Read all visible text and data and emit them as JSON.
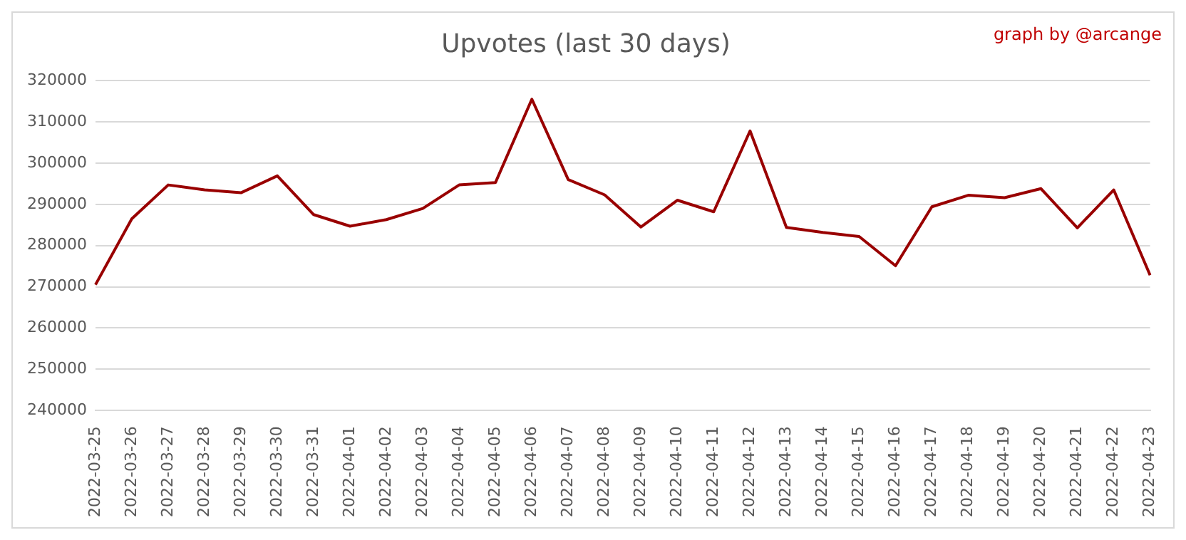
{
  "chart_data": {
    "type": "line",
    "title": "Upvotes (last 30 days)",
    "annotations": [
      "graph by @arcange"
    ],
    "categories": [
      "2022-03-25",
      "2022-03-26",
      "2022-03-27",
      "2022-03-28",
      "2022-03-29",
      "2022-03-30",
      "2022-03-31",
      "2022-04-01",
      "2022-04-02",
      "2022-04-03",
      "2022-04-04",
      "2022-04-05",
      "2022-04-06",
      "2022-04-07",
      "2022-04-08",
      "2022-04-09",
      "2022-04-10",
      "2022-04-11",
      "2022-04-12",
      "2022-04-13",
      "2022-04-14",
      "2022-04-15",
      "2022-04-16",
      "2022-04-17",
      "2022-04-18",
      "2022-04-19",
      "2022-04-20",
      "2022-04-21",
      "2022-04-22",
      "2022-04-23"
    ],
    "series": [
      {
        "color": "#990000",
        "values": [
          270500,
          286500,
          294700,
          293500,
          292800,
          296900,
          287500,
          284700,
          286300,
          289000,
          294700,
          295300,
          315500,
          296000,
          292300,
          284500,
          291000,
          288200,
          307800,
          284400,
          283200,
          282200,
          275100,
          289400,
          292200,
          291600,
          293800,
          284300,
          293500,
          272800
        ]
      }
    ],
    "ylim": [
      240000,
      320000
    ],
    "yticks": [
      240000,
      250000,
      260000,
      270000,
      280000,
      290000,
      300000,
      310000,
      320000
    ],
    "grid": "y",
    "legend": false,
    "marker": "none",
    "line_style": "solid"
  }
}
